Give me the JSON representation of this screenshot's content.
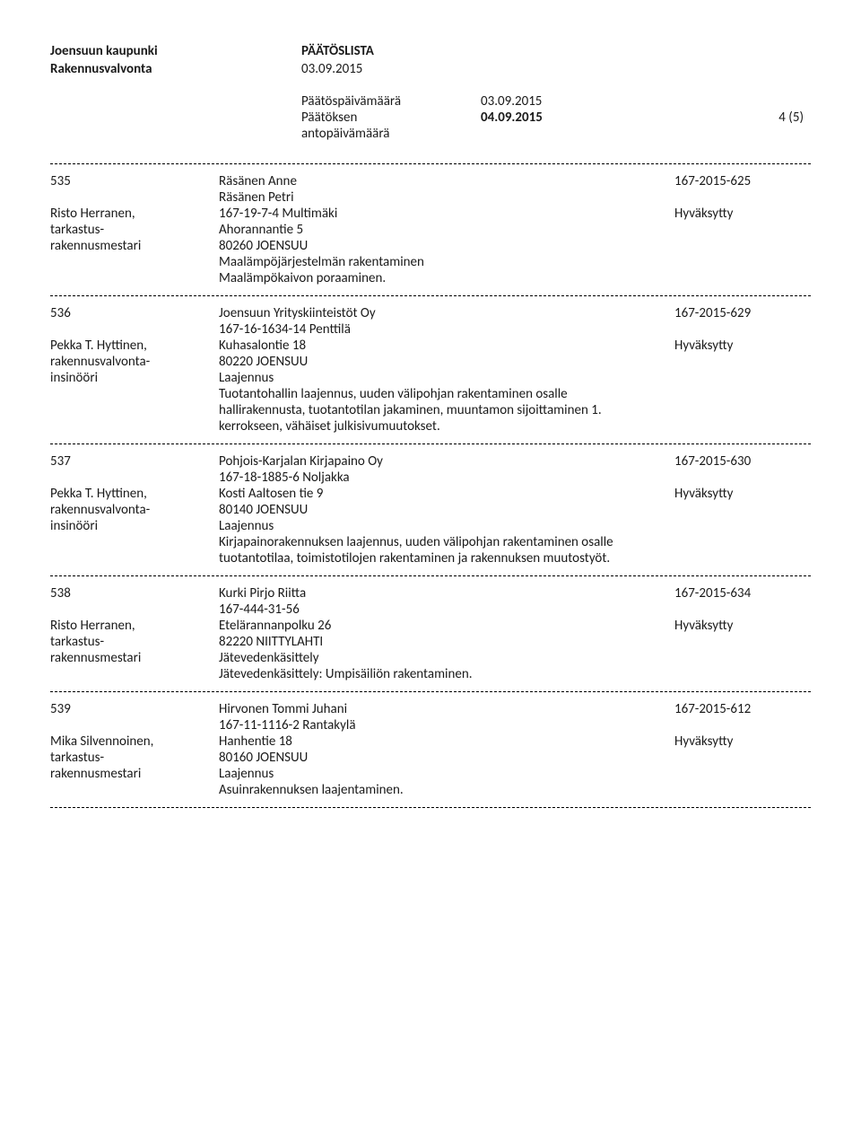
{
  "header": {
    "org_line1": "Joensuun kaupunki",
    "org_line2": "Rakennusvalvonta",
    "doc_type": "PÄÄTÖSLISTA",
    "doc_date": "03.09.2015"
  },
  "meta": {
    "label1": "Päätöspäivämäärä",
    "value1": "03.09.2015",
    "label2a": "Päätöksen",
    "label2b": "antopäivämäärä",
    "value2": "04.09.2015",
    "page": "4 (5)"
  },
  "entries": [
    {
      "num": "535",
      "officer_line1": "Risto Herranen,",
      "officer_line2": "tarkastus-",
      "officer_line3": "rakennusmestari",
      "mid_lines": [
        "Räsänen Anne",
        "Räsänen Petri",
        "167-19-7-4   Multimäki",
        "Ahorannantie 5",
        "80260 JOENSUU",
        "Maalämpöjärjestelmän rakentaminen",
        "Maalämpökaivon poraaminen."
      ],
      "case_no": "167-2015-625",
      "status": "Hyväksytty",
      "status_row_index": 2
    },
    {
      "num": "536",
      "officer_line1": "Pekka T. Hyttinen,",
      "officer_line2": "rakennusvalvonta-",
      "officer_line3": "insinööri",
      "mid_lines": [
        "Joensuun Yrityskiinteistöt Oy",
        "167-16-1634-14   Penttilä",
        "Kuhasalontie 18",
        "80220 JOENSUU",
        "Laajennus",
        "Tuotantohallin  laajennus, uuden välipohjan rakentaminen osalle hallirakennusta, tuotantotilan jakaminen, muuntamon sijoittaminen 1. kerrokseen, vähäiset julkisivumuutokset."
      ],
      "case_no": "167-2015-629",
      "status": "Hyväksytty",
      "status_row_index": 2
    },
    {
      "num": "537",
      "officer_line1": "Pekka T. Hyttinen,",
      "officer_line2": "rakennusvalvonta-",
      "officer_line3": "insinööri",
      "mid_lines": [
        "Pohjois-Karjalan Kirjapaino Oy",
        "167-18-1885-6   Noljakka",
        "Kosti Aaltosen tie 9",
        "80140 JOENSUU",
        "Laajennus",
        "Kirjapainorakennuksen laajennus, uuden välipohjan rakentaminen osalle tuotantotilaa, toimistotilojen rakentaminen  ja  rakennuksen muutostyöt."
      ],
      "case_no": "167-2015-630",
      "status": "Hyväksytty",
      "status_row_index": 2
    },
    {
      "num": "538",
      "officer_line1": "Risto Herranen,",
      "officer_line2": "tarkastus-",
      "officer_line3": "rakennusmestari",
      "mid_lines": [
        "Kurki Pirjo Riitta",
        "167-444-31-56",
        "Etelärannanpolku 26",
        "82220 NIITTYLAHTI",
        "Jätevedenkäsittely",
        "Jätevedenkäsittely: Umpisäiliön rakentaminen."
      ],
      "case_no": "167-2015-634",
      "status": "Hyväksytty",
      "status_row_index": 2
    },
    {
      "num": "539",
      "officer_line1": "Mika Silvennoinen,",
      "officer_line2": "tarkastus-",
      "officer_line3": "rakennusmestari",
      "mid_lines": [
        "Hirvonen Tommi Juhani",
        "167-11-1116-2   Rantakylä",
        "Hanhentie 18",
        "80160 JOENSUU",
        "Laajennus",
        "Asuinrakennuksen laajentaminen."
      ],
      "case_no": "167-2015-612",
      "status": "Hyväksytty",
      "status_row_index": 2
    }
  ]
}
